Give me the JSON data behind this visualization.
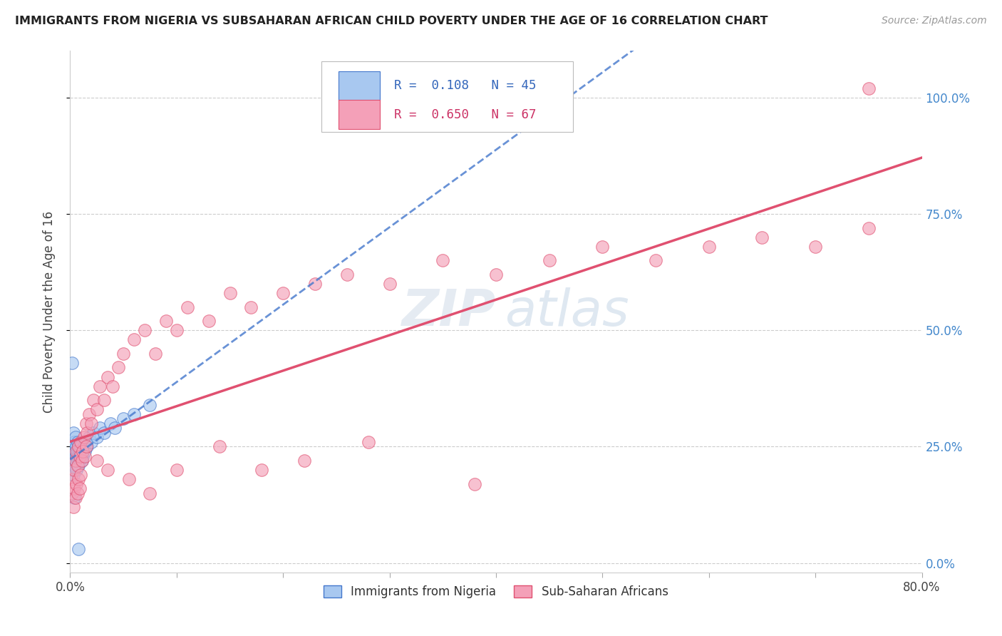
{
  "title": "IMMIGRANTS FROM NIGERIA VS SUBSAHARAN AFRICAN CHILD POVERTY UNDER THE AGE OF 16 CORRELATION CHART",
  "source": "Source: ZipAtlas.com",
  "ylabel": "Child Poverty Under the Age of 16",
  "xlim": [
    0.0,
    0.8
  ],
  "ylim": [
    -0.02,
    1.1
  ],
  "ytick_labels": [
    "0.0%",
    "25.0%",
    "50.0%",
    "75.0%",
    "100.0%"
  ],
  "ytick_values": [
    0.0,
    0.25,
    0.5,
    0.75,
    1.0
  ],
  "xtick_values": [
    0.0,
    0.1,
    0.2,
    0.3,
    0.4,
    0.5,
    0.6,
    0.7,
    0.8
  ],
  "legend_label1": "Immigrants from Nigeria",
  "legend_label2": "Sub-Saharan Africans",
  "color_blue": "#a8c8f0",
  "color_pink": "#f4a0b8",
  "line_blue": "#4477cc",
  "line_pink": "#e05070",
  "R1": 0.108,
  "N1": 45,
  "R2": 0.65,
  "N2": 67,
  "nigeria_x": [
    0.001,
    0.002,
    0.002,
    0.003,
    0.003,
    0.003,
    0.004,
    0.004,
    0.005,
    0.005,
    0.005,
    0.006,
    0.006,
    0.006,
    0.007,
    0.007,
    0.007,
    0.008,
    0.008,
    0.008,
    0.009,
    0.009,
    0.01,
    0.01,
    0.011,
    0.011,
    0.012,
    0.013,
    0.014,
    0.015,
    0.016,
    0.018,
    0.02,
    0.022,
    0.025,
    0.028,
    0.032,
    0.038,
    0.042,
    0.05,
    0.06,
    0.075,
    0.002,
    0.004,
    0.008
  ],
  "nigeria_y": [
    0.2,
    0.22,
    0.25,
    0.19,
    0.23,
    0.28,
    0.21,
    0.26,
    0.22,
    0.24,
    0.27,
    0.2,
    0.23,
    0.25,
    0.22,
    0.24,
    0.26,
    0.21,
    0.23,
    0.25,
    0.22,
    0.24,
    0.23,
    0.25,
    0.22,
    0.24,
    0.23,
    0.25,
    0.24,
    0.26,
    0.25,
    0.27,
    0.26,
    0.28,
    0.27,
    0.29,
    0.28,
    0.3,
    0.29,
    0.31,
    0.32,
    0.34,
    0.43,
    0.14,
    0.03
  ],
  "subsaharan_x": [
    0.001,
    0.002,
    0.003,
    0.004,
    0.004,
    0.005,
    0.005,
    0.006,
    0.006,
    0.007,
    0.007,
    0.008,
    0.008,
    0.009,
    0.009,
    0.01,
    0.01,
    0.011,
    0.012,
    0.013,
    0.014,
    0.015,
    0.016,
    0.018,
    0.02,
    0.022,
    0.025,
    0.028,
    0.032,
    0.035,
    0.04,
    0.045,
    0.05,
    0.06,
    0.07,
    0.08,
    0.09,
    0.1,
    0.11,
    0.13,
    0.15,
    0.17,
    0.2,
    0.23,
    0.26,
    0.3,
    0.35,
    0.4,
    0.45,
    0.5,
    0.55,
    0.6,
    0.65,
    0.7,
    0.75,
    0.015,
    0.025,
    0.035,
    0.055,
    0.075,
    0.1,
    0.14,
    0.18,
    0.22,
    0.28,
    0.38,
    0.75
  ],
  "subsaharan_y": [
    0.18,
    0.15,
    0.12,
    0.16,
    0.2,
    0.14,
    0.22,
    0.17,
    0.24,
    0.15,
    0.21,
    0.18,
    0.25,
    0.16,
    0.23,
    0.19,
    0.26,
    0.22,
    0.24,
    0.27,
    0.23,
    0.3,
    0.28,
    0.32,
    0.3,
    0.35,
    0.33,
    0.38,
    0.35,
    0.4,
    0.38,
    0.42,
    0.45,
    0.48,
    0.5,
    0.45,
    0.52,
    0.5,
    0.55,
    0.52,
    0.58,
    0.55,
    0.58,
    0.6,
    0.62,
    0.6,
    0.65,
    0.62,
    0.65,
    0.68,
    0.65,
    0.68,
    0.7,
    0.68,
    0.72,
    0.25,
    0.22,
    0.2,
    0.18,
    0.15,
    0.2,
    0.25,
    0.2,
    0.22,
    0.26,
    0.17,
    1.02
  ]
}
